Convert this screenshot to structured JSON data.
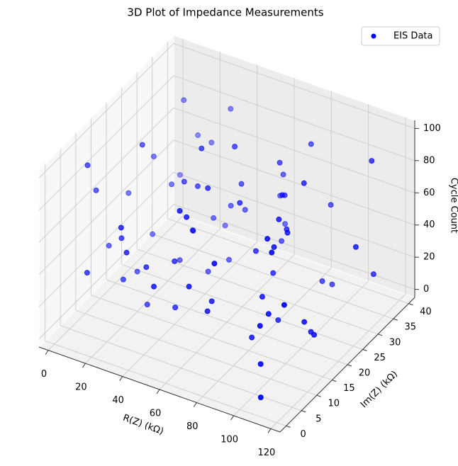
{
  "chart_data": {
    "type": "scatter3d",
    "title": "3D Plot of Impedance Measurements",
    "xlabel": "R(Z) (kΩ)",
    "ylabel": "Im(Z) (kΩ)",
    "zlabel": "Cycle Count",
    "xlim": [
      -5,
      125
    ],
    "ylim": [
      -2,
      42
    ],
    "zlim": [
      -5,
      105
    ],
    "xticks": [
      0,
      20,
      40,
      60,
      80,
      100,
      120
    ],
    "yticks": [
      0,
      5,
      10,
      15,
      20,
      25,
      30,
      35,
      40
    ],
    "zticks": [
      0,
      20,
      40,
      60,
      80,
      100
    ],
    "grid": true,
    "legend": "upper right",
    "series": [
      {
        "name": "EIS Data",
        "color": "blue",
        "x": [
          12,
          45,
          78,
          103,
          5,
          67,
          90,
          23,
          56,
          110,
          34,
          88,
          15,
          72,
          99,
          41,
          60,
          118,
          8,
          27,
          83,
          50,
          95,
          19,
          64,
          107,
          38,
          75,
          3,
          115,
          52,
          86,
          29,
          70,
          10,
          97,
          44,
          61,
          112,
          22,
          80,
          36,
          92,
          55,
          17,
          101,
          48,
          68,
          6,
          84,
          31,
          119,
          58,
          25,
          74,
          104,
          40,
          13,
          89,
          63,
          33,
          96,
          47,
          79,
          2,
          108,
          53,
          21,
          71,
          116,
          37,
          85,
          9,
          59,
          100,
          28,
          66,
          43,
          93,
          16
        ],
        "y": [
          35,
          12,
          28,
          5,
          38,
          20,
          33,
          8,
          25,
          15,
          3,
          37,
          18,
          30,
          10,
          22,
          39,
          27,
          6,
          14,
          2,
          32,
          24,
          11,
          36,
          19,
          7,
          29,
          16,
          34,
          1,
          21,
          40,
          9,
          26,
          13,
          31,
          4,
          17,
          38,
          23,
          0,
          35,
          12,
          28,
          6,
          19,
          33,
          10,
          25,
          37,
          3,
          15,
          30,
          21,
          8,
          26,
          39,
          14,
          5,
          32,
          18,
          11,
          36,
          23,
          2,
          29,
          16,
          7,
          34,
          20,
          13,
          27,
          38,
          9,
          24,
          4,
          31,
          17,
          1
        ],
        "z": [
          85,
          42,
          66,
          15,
          30,
          72,
          8,
          55,
          93,
          25,
          60,
          47,
          12,
          80,
          35,
          68,
          20,
          52,
          98,
          4,
          75,
          38,
          88,
          22,
          58,
          10,
          45,
          63,
          27,
          91,
          50,
          5,
          77,
          33,
          18,
          70,
          40,
          95,
          14,
          57,
          28,
          82,
          3,
          65,
          48,
          36,
          100,
          24,
          74,
          53,
          11,
          62,
          87,
          19,
          43,
          79,
          7,
          56,
          34,
          90,
          26,
          69,
          16,
          83,
          46,
          2,
          61,
          97,
          31,
          21,
          73,
          9,
          64,
          39,
          84,
          13,
          50,
          6,
          78,
          44
        ]
      }
    ]
  }
}
